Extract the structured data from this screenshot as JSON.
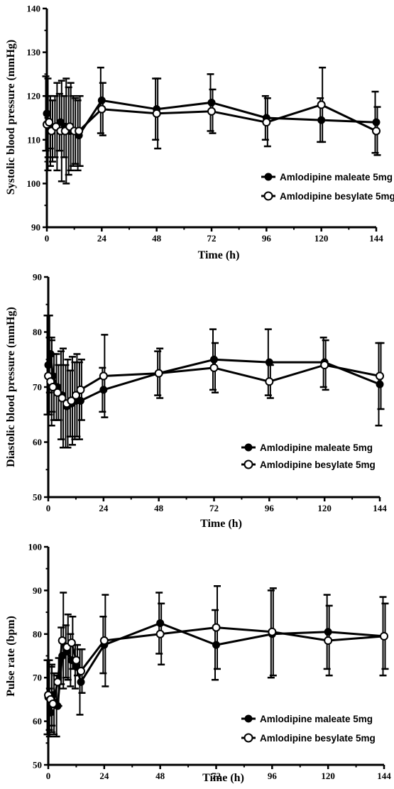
{
  "chart_data": [
    {
      "type": "line",
      "ylabel": "Systolic blood pressure (mmHg)",
      "xlabel": "Time (h)",
      "xlim": [
        0,
        144
      ],
      "ylim": [
        90,
        140
      ],
      "xticks": [
        0,
        24,
        48,
        72,
        96,
        120,
        144
      ],
      "yticks": [
        90,
        100,
        110,
        120,
        130,
        140
      ],
      "legend_position": "bottom-right",
      "series": [
        {
          "name": "Amlodipine maleate 5mg",
          "marker": "filled-circle",
          "x": [
            0,
            1,
            2,
            4,
            6,
            8,
            10,
            12,
            14,
            24,
            48,
            72,
            96,
            120,
            144
          ],
          "y": [
            116,
            113,
            112,
            113,
            114,
            113,
            112,
            112,
            111,
            119,
            117,
            118.5,
            115,
            114.5,
            114
          ],
          "err": [
            8.5,
            7,
            8,
            7,
            6.5,
            7,
            10,
            8,
            8,
            7.5,
            7,
            6.5,
            5,
            5,
            7
          ]
        },
        {
          "name": "Amlodipine besylate 5mg",
          "marker": "open-circle",
          "x": [
            0,
            1,
            2,
            4,
            6,
            8,
            10,
            12,
            14,
            24,
            48,
            72,
            96,
            120,
            144
          ],
          "y": [
            113.5,
            114,
            112,
            113,
            112,
            112,
            113,
            112,
            112,
            117,
            116,
            116.5,
            114,
            118,
            112
          ],
          "err": [
            10.5,
            6,
            7,
            10,
            11.5,
            12,
            10,
            7.5,
            8,
            6,
            8,
            5,
            5.5,
            8.5,
            5.5
          ]
        }
      ]
    },
    {
      "type": "line",
      "ylabel": "Diastolic blood pressure (mmHg)",
      "xlabel": "Time (h)",
      "xlim": [
        0,
        144
      ],
      "ylim": [
        50,
        90
      ],
      "xticks": [
        0,
        24,
        48,
        72,
        96,
        120,
        144
      ],
      "yticks": [
        50,
        60,
        70,
        80,
        90
      ],
      "legend_position": "bottom-right",
      "series": [
        {
          "name": "Amlodipine maleate 5mg",
          "marker": "filled-circle",
          "x": [
            0,
            1,
            2,
            4,
            6,
            8,
            10,
            12,
            14,
            24,
            48,
            72,
            96,
            120,
            144
          ],
          "y": [
            74,
            76,
            72,
            70,
            68.5,
            66.5,
            67,
            67.5,
            67.5,
            69.5,
            72.5,
            75,
            74.5,
            74.5,
            70.5
          ],
          "err": [
            9,
            7,
            6.5,
            6,
            8,
            7.5,
            6,
            7,
            7,
            4,
            4,
            5.5,
            6,
            4.5,
            7.5
          ]
        },
        {
          "name": "Amlodipine besylate 5mg",
          "marker": "open-circle",
          "x": [
            0,
            1,
            2,
            4,
            6,
            8,
            10,
            12,
            14,
            24,
            48,
            72,
            96,
            120,
            144
          ],
          "y": [
            72,
            71,
            70,
            69,
            68,
            67,
            67.5,
            68.5,
            69.5,
            72,
            72.5,
            73.5,
            71,
            74,
            72
          ],
          "err": [
            7,
            8,
            6,
            5,
            9,
            8,
            8,
            7.5,
            5.5,
            7.5,
            4.5,
            4.5,
            3,
            4.5,
            6
          ]
        }
      ]
    },
    {
      "type": "line",
      "ylabel": "Pulse rate (bpm)",
      "xlabel": "Time (h)",
      "xlim": [
        0,
        144
      ],
      "ylim": [
        50,
        100
      ],
      "xticks": [
        0,
        24,
        48,
        72,
        96,
        120,
        144
      ],
      "yticks": [
        50,
        60,
        70,
        80,
        90,
        100
      ],
      "legend_position": "bottom-right",
      "series": [
        {
          "name": "Amlodipine maleate 5mg",
          "marker": "filled-circle",
          "x": [
            0,
            1,
            2,
            4,
            6,
            8,
            10,
            12,
            14,
            24,
            48,
            72,
            96,
            120,
            144
          ],
          "y": [
            65.5,
            62,
            66,
            63.5,
            75,
            76,
            74,
            72.5,
            69,
            77.5,
            82.5,
            77.5,
            80,
            80.5,
            79.5
          ],
          "err": [
            8.5,
            5.5,
            7,
            7,
            6.5,
            6,
            6,
            5,
            7.5,
            6.5,
            7,
            8,
            10,
            8.5,
            9
          ]
        },
        {
          "name": "Amlodipine besylate 5mg",
          "marker": "open-circle",
          "x": [
            0,
            1,
            2,
            4,
            6,
            8,
            10,
            12,
            14,
            24,
            48,
            72,
            96,
            120,
            144
          ],
          "y": [
            66,
            65,
            64,
            69,
            78.5,
            77,
            78,
            74,
            71.5,
            78.5,
            80,
            81.5,
            80.5,
            78.5,
            79.5
          ],
          "err": [
            8,
            7.5,
            7,
            5.5,
            11,
            7.5,
            6,
            3.5,
            5,
            10.5,
            7,
            9.5,
            10,
            8,
            7.5
          ]
        }
      ]
    }
  ]
}
